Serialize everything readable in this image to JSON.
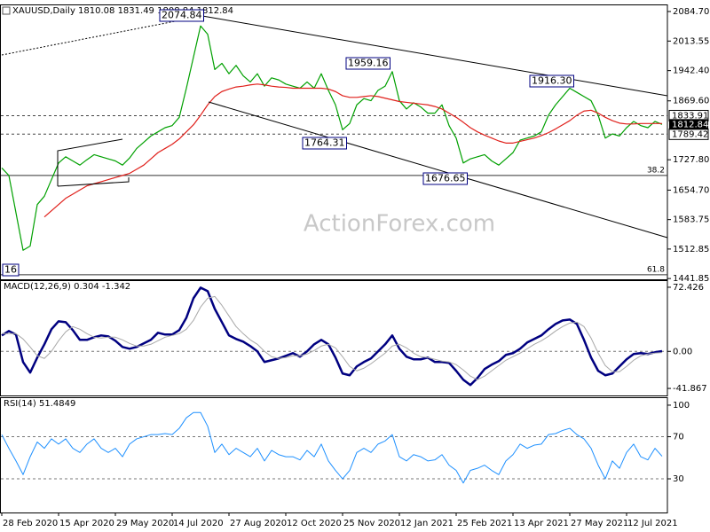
{
  "chart_data": [
    {
      "type": "line",
      "title": "XAUUSD,Daily  1810.08 1831.49 1808.84 1812.84",
      "ylim": [
        1440,
        2099.6
      ],
      "yticks": [
        {
          "value": 2084.7,
          "label": "2084.70"
        },
        2013.55,
        {
          "value": 1942.4,
          "label": "1942.40"
        },
        {
          "value": 1869.6,
          "label": "1869.60"
        },
        {
          "value": 1727.8,
          "label": "1727.80"
        },
        {
          "value": 1654.7,
          "label": "1654.70"
        },
        1583.75,
        1512.85,
        1441.85
      ],
      "levels": [
        1833.91,
        1789.42
      ],
      "last_price": 1812.84,
      "fib_levels": [
        {
          "ratio": 38.2,
          "price": 1690
        },
        {
          "ratio": 61.8,
          "price": 1451
        }
      ],
      "annotations": [
        "2074.84",
        "1959.16",
        "1916.30",
        "1764.31",
        "1676.65",
        "16"
      ],
      "watermark": "ActionForex.com",
      "series": [
        {
          "color": "#00a000",
          "values": [
            1708,
            1690,
            1600,
            1510,
            1520,
            1620,
            1640,
            1680,
            1720,
            1735,
            1725,
            1715,
            1728,
            1740,
            1735,
            1730,
            1725,
            1715,
            1732,
            1755,
            1770,
            1785,
            1795,
            1805,
            1810,
            1830,
            1900,
            1975,
            2050,
            2030,
            1945,
            1960,
            1935,
            1955,
            1930,
            1915,
            1935,
            1905,
            1925,
            1920,
            1910,
            1905,
            1900,
            1915,
            1900,
            1935,
            1895,
            1860,
            1800,
            1815,
            1860,
            1875,
            1870,
            1895,
            1905,
            1940,
            1870,
            1850,
            1865,
            1855,
            1840,
            1840,
            1860,
            1810,
            1780,
            1720,
            1730,
            1735,
            1740,
            1725,
            1715,
            1730,
            1745,
            1775,
            1780,
            1785,
            1795,
            1835,
            1860,
            1880,
            1900,
            1890,
            1880,
            1870,
            1835,
            1780,
            1790,
            1785,
            1805,
            1820,
            1810,
            1805,
            1820,
            1812.84
          ]
        },
        {
          "color": "#e0201b",
          "values": [
            null,
            null,
            null,
            null,
            null,
            null,
            1590,
            1605,
            1620,
            1635,
            1645,
            1655,
            1665,
            1670,
            1675,
            1680,
            1685,
            1690,
            1695,
            1705,
            1715,
            1730,
            1745,
            1755,
            1765,
            1778,
            1795,
            1812,
            1835,
            1860,
            1880,
            1892,
            1898,
            1903,
            1905,
            1908,
            1910,
            1908,
            1905,
            1903,
            1902,
            1900,
            1900,
            1900,
            1900,
            1900,
            1898,
            1892,
            1882,
            1878,
            1878,
            1880,
            1882,
            1880,
            1876,
            1872,
            1868,
            1866,
            1864,
            1862,
            1860,
            1856,
            1850,
            1840,
            1830,
            1818,
            1805,
            1795,
            1787,
            1780,
            1773,
            1768,
            1768,
            1772,
            1776,
            1780,
            1786,
            1793,
            1802,
            1812,
            1822,
            1835,
            1845,
            1847,
            1840,
            1830,
            1822,
            1816,
            1814,
            1814,
            1815,
            1815,
            1815,
            1815
          ]
        }
      ]
    },
    {
      "type": "line",
      "title": "MACD(12,26,9) 0.304 -1.342",
      "ylim": [
        -49.8,
        79.4
      ],
      "yticks": [
        72.426,
        {
          "value": 0,
          "label": "0.00"
        },
        -41.867
      ],
      "levels": [
        0
      ],
      "series": [
        {
          "color": "#000080",
          "width": 2.5,
          "values": [
            18,
            23,
            19,
            -12,
            -24,
            -7,
            8,
            25,
            34,
            33,
            24,
            13,
            13,
            16,
            18,
            17,
            12,
            5,
            3,
            5,
            9,
            13,
            21,
            19,
            19,
            24,
            38,
            60,
            72,
            68,
            48,
            33,
            18,
            14,
            11,
            6,
            0,
            -12,
            -10,
            -8,
            -5,
            -2,
            -6,
            0,
            8,
            13,
            8,
            -7,
            -25,
            -27,
            -17,
            -12,
            -8,
            0,
            8,
            18,
            3,
            -6,
            -9,
            -9,
            -7,
            -12,
            -12,
            -13,
            -22,
            -32,
            -38,
            -30,
            -20,
            -15,
            -11,
            -4,
            -2,
            3,
            10,
            14,
            18,
            25,
            31,
            35,
            36,
            31,
            13,
            -7,
            -22,
            -27,
            -25,
            -17,
            -9,
            -3,
            -2,
            -3,
            -1,
            0.304
          ]
        },
        {
          "color": "#a8a8a8",
          "width": 1,
          "values": [
            20,
            20,
            20,
            14,
            5,
            -5,
            -8,
            0,
            12,
            22,
            28,
            25,
            20,
            16,
            15,
            16,
            16,
            13,
            9,
            6,
            6,
            8,
            12,
            16,
            18,
            20,
            25,
            35,
            50,
            60,
            62,
            52,
            40,
            28,
            20,
            13,
            8,
            0,
            -6,
            -8,
            -7,
            -5,
            -5,
            -3,
            1,
            6,
            8,
            4,
            -6,
            -17,
            -22,
            -19,
            -14,
            -8,
            -2,
            6,
            8,
            4,
            -2,
            -6,
            -7,
            -9,
            -11,
            -12,
            -15,
            -21,
            -28,
            -32,
            -28,
            -22,
            -16,
            -10,
            -6,
            -2,
            3,
            8,
            12,
            17,
            23,
            28,
            32,
            33,
            28,
            15,
            -2,
            -16,
            -23,
            -23,
            -17,
            -10,
            -5,
            -3,
            -2,
            -1.342
          ]
        }
      ]
    },
    {
      "type": "line",
      "title": "RSI(14) 51.4849",
      "ylim": [
        -2,
        106.7
      ],
      "yticks": [
        100,
        70,
        30
      ],
      "levels": [
        70,
        30
      ],
      "categories": [
        "28 Feb 2020",
        null,
        null,
        null,
        null,
        null,
        null,
        null,
        "15 Apr 2020",
        null,
        null,
        null,
        null,
        null,
        null,
        null,
        "29 May 2020",
        null,
        null,
        null,
        null,
        null,
        null,
        null,
        "14 Jul 2020",
        null,
        null,
        null,
        null,
        null,
        null,
        null,
        "27 Aug 2020",
        null,
        null,
        null,
        null,
        null,
        null,
        null,
        "12 Oct 2020",
        null,
        null,
        null,
        null,
        null,
        null,
        null,
        "25 Nov 2020",
        null,
        null,
        null,
        null,
        null,
        null,
        null,
        "12 Jan 2021",
        null,
        null,
        null,
        null,
        null,
        null,
        null,
        "25 Feb 2021",
        null,
        null,
        null,
        null,
        null,
        null,
        null,
        "13 Apr 2021",
        null,
        null,
        null,
        null,
        null,
        null,
        null,
        "27 May 2021",
        null,
        null,
        null,
        null,
        null,
        null,
        null,
        "12 Jul 2021",
        null,
        null,
        null,
        null,
        null
      ],
      "series": [
        {
          "color": "#1e90ff",
          "width": 1,
          "values": [
            72,
            59,
            47,
            34,
            51,
            65,
            59,
            68,
            63,
            68,
            59,
            55,
            63,
            68,
            59,
            55,
            59,
            51,
            63,
            68,
            70,
            72,
            72,
            73,
            72,
            78,
            88,
            93,
            93,
            80,
            55,
            63,
            53,
            59,
            55,
            51,
            59,
            47,
            57,
            53,
            51,
            51,
            48,
            57,
            51,
            63,
            47,
            38,
            30,
            38,
            55,
            59,
            55,
            63,
            66,
            72,
            51,
            47,
            53,
            51,
            47,
            48,
            53,
            43,
            38,
            26,
            38,
            40,
            43,
            38,
            34,
            47,
            53,
            63,
            59,
            62,
            63,
            72,
            73,
            76,
            78,
            72,
            68,
            59,
            43,
            30,
            47,
            40,
            55,
            63,
            51,
            48,
            59,
            51.4849
          ]
        }
      ]
    }
  ]
}
